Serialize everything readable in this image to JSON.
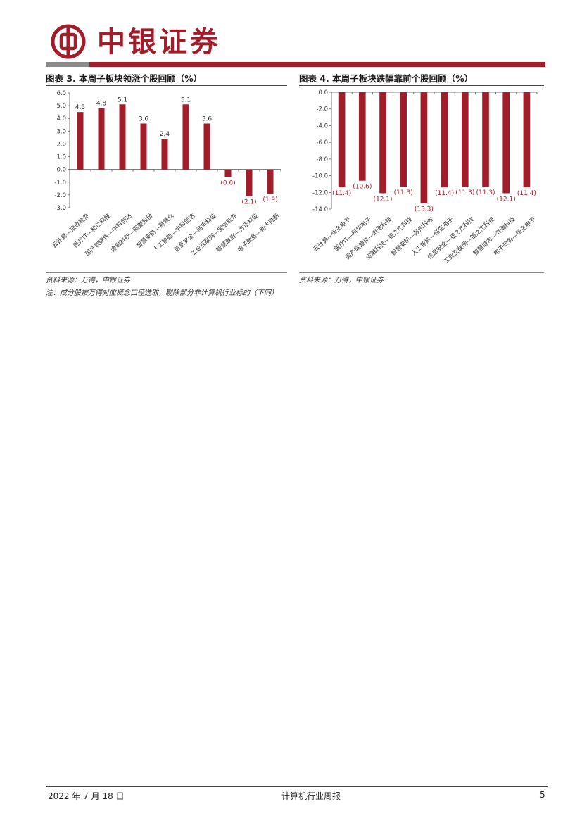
{
  "header": {
    "brand": "中银证券",
    "accent_color": "#a11d2a"
  },
  "figures": [
    {
      "title": "图表 3. 本周子板块领涨个股回顾（%）",
      "source": "资料来源：万得，中银证券",
      "note": "注：成分股按万得对应概念口径选取，剔除部分非计算机行业标的（下同）"
    },
    {
      "title": "图表 4. 本周子板块跌幅靠前个股回顾（%）",
      "source": "资料来源：万得，中银证券"
    }
  ],
  "chart_data": [
    {
      "type": "bar",
      "categories": [
        "云计算—顶点软件",
        "医疗IT—和仁科技",
        "国产软硬件—中科创达",
        "金融科技—熙菱股份",
        "智慧安防—易联众",
        "人工智能—中科创达",
        "信息安全—浩丰科技",
        "工业互联网—宝信软件",
        "智慧政府—方正科技",
        "电子政务—新大陆新"
      ],
      "values": [
        4.5,
        4.8,
        5.1,
        3.6,
        2.4,
        5.1,
        3.6,
        -0.6,
        -2.1,
        -1.9
      ],
      "labels": [
        "4.5",
        "4.8",
        "5.1",
        "3.6",
        "2.4",
        "5.1",
        "3.6",
        "(0.6)",
        "(2.1)",
        "(1.9)"
      ],
      "yticks": [
        "6.0",
        "5.0",
        "4.0",
        "3.0",
        "2.0",
        "1.0",
        "0.0",
        "-1.0",
        "-2.0",
        "-3.0"
      ],
      "ylim": [
        -3,
        6
      ],
      "color": "#a11d2a"
    },
    {
      "type": "bar",
      "categories": [
        "云计算—恒生电子",
        "医疗IT—科华电子",
        "国产软硬件—浪潮科技",
        "金融科技—银之杰科技",
        "智慧安防—苏州科达",
        "人工智能—恒生电子",
        "信息安全—银之杰科技",
        "工业互联网—银之杰科技",
        "智慧城市—浪潮科技",
        "电子政务—恒生电子"
      ],
      "values": [
        -11.4,
        -10.6,
        -12.1,
        -11.3,
        -13.3,
        -11.4,
        -11.3,
        -11.3,
        -12.1,
        -11.4
      ],
      "labels": [
        "(11.4)",
        "(10.6)",
        "(12.1)",
        "(11.3)",
        "(13.3)",
        "(11.4)",
        "(11.3)",
        "(11.3)",
        "(12.1)",
        "(11.4)"
      ],
      "yticks": [
        "0.0",
        "-2.0",
        "-4.0",
        "-6.0",
        "-8.0",
        "-10.0",
        "-12.0",
        "-14.0"
      ],
      "ylim": [
        -14,
        0
      ],
      "color": "#a11d2a"
    }
  ],
  "footer": {
    "date": "2022 年 7 月 18 日",
    "title": "计算机行业周报",
    "page": "5"
  }
}
